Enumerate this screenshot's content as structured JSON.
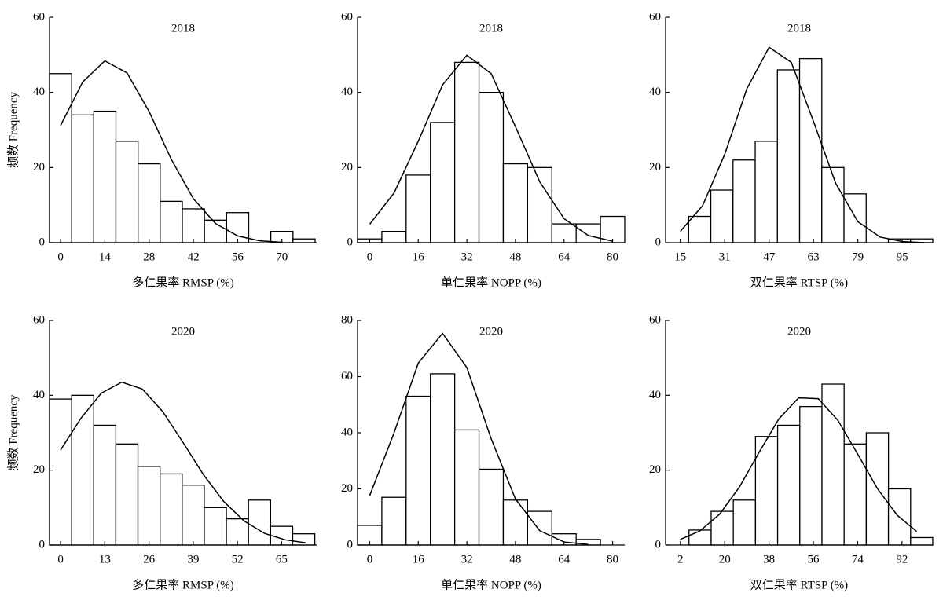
{
  "chart_data": [
    {
      "type": "histogram",
      "title": "2018",
      "xlabel": "多仁果率 RMSP (%)",
      "ylabel": "频数 Frequency",
      "bins": [
        -3.5,
        3.5,
        10.5,
        17.5,
        24.5,
        31.5,
        38.5,
        45.5,
        52.5,
        59.5,
        66.5,
        73.5,
        80.5
      ],
      "counts": [
        45,
        34,
        35,
        27,
        21,
        11,
        9,
        6,
        8,
        0,
        3,
        1
      ],
      "line": {
        "x": [
          0,
          7,
          14,
          21,
          28,
          35,
          42,
          49,
          56,
          63,
          70
        ],
        "values": [
          31.2,
          42.8,
          48.4,
          45.2,
          34.9,
          22.2,
          11.7,
          5.1,
          1.8,
          0.5,
          0.1
        ]
      },
      "xlim": [
        -3.5,
        81
      ],
      "ylim": [
        0,
        60
      ],
      "xticks": [
        0,
        14,
        28,
        42,
        56,
        70
      ],
      "yticks": [
        0,
        20,
        40,
        60
      ]
    },
    {
      "type": "histogram",
      "title": "2018",
      "xlabel": "单仁果率 NOPP (%)",
      "bins": [
        -4,
        4,
        12,
        20,
        28,
        36,
        44,
        52,
        60,
        68,
        76,
        84
      ],
      "counts": [
        1,
        3,
        18,
        32,
        48,
        40,
        21,
        20,
        5,
        5,
        7
      ],
      "line": {
        "x": [
          0,
          8,
          16,
          24,
          32,
          40,
          48,
          56,
          64,
          72,
          80
        ],
        "values": [
          4.9,
          13.2,
          27.0,
          42.0,
          49.9,
          45.0,
          30.9,
          16.2,
          6.4,
          1.9,
          0.4
        ]
      },
      "xlim": [
        -4,
        84
      ],
      "ylim": [
        0,
        60
      ],
      "xticks": [
        0,
        16,
        32,
        48,
        64,
        80
      ],
      "yticks": [
        0,
        20,
        40,
        60
      ]
    },
    {
      "type": "histogram",
      "title": "2018",
      "xlabel": "双仁果率 RTSP (%)",
      "bins": [
        18,
        26,
        34,
        42,
        50,
        58,
        66,
        74,
        82,
        90,
        98,
        106
      ],
      "counts": [
        7,
        14,
        22,
        27,
        46,
        49,
        20,
        13,
        0,
        1,
        1
      ],
      "line": {
        "x": [
          15,
          23,
          31,
          39,
          47,
          55,
          63,
          71,
          79,
          87,
          95,
          103
        ],
        "values": [
          3.0,
          9.8,
          23.5,
          41.0,
          52.0,
          48.0,
          32.3,
          15.8,
          5.6,
          1.5,
          0.3,
          0.0
        ]
      },
      "xlim": [
        9.7,
        106
      ],
      "ylim": [
        0,
        60
      ],
      "xticks": [
        15,
        31,
        47,
        63,
        79,
        95
      ],
      "yticks": [
        0,
        20,
        40,
        60
      ]
    },
    {
      "type": "histogram",
      "title": "2020",
      "xlabel": "多仁果率 RMSP (%)",
      "ylabel": "频数 Frequency",
      "bins": [
        -3.25,
        3.25,
        9.75,
        16.25,
        22.75,
        29.25,
        35.75,
        42.25,
        48.75,
        55.25,
        61.75,
        68.25,
        74.75
      ],
      "counts": [
        39,
        40,
        32,
        27,
        21,
        19,
        16,
        10,
        7,
        12,
        5,
        3
      ],
      "line": {
        "x": [
          0,
          6,
          12,
          18,
          24,
          30,
          36,
          42,
          48,
          54,
          60,
          66,
          72
        ],
        "values": [
          25.4,
          33.9,
          40.6,
          43.5,
          41.7,
          35.7,
          27.4,
          18.8,
          11.6,
          6.4,
          3.1,
          1.4,
          0.6
        ]
      },
      "xlim": [
        -3.25,
        75.3
      ],
      "ylim": [
        0,
        60
      ],
      "xticks": [
        0,
        13,
        26,
        39,
        52,
        65
      ],
      "yticks": [
        0,
        20,
        40,
        60
      ]
    },
    {
      "type": "histogram",
      "title": "2020",
      "xlabel": "单仁果率 NOPP (%)",
      "bins": [
        -4,
        4,
        12,
        20,
        28,
        36,
        44,
        52,
        60,
        68,
        76,
        84
      ],
      "counts": [
        7,
        17,
        53,
        61,
        41,
        27,
        16,
        12,
        4,
        2,
        0
      ],
      "line": {
        "x": [
          0,
          8,
          16,
          24,
          32,
          40,
          48,
          56,
          64,
          72
        ],
        "values": [
          17.6,
          39.9,
          64.8,
          75.4,
          63.2,
          37.9,
          16.4,
          5.1,
          1.1,
          0.2
        ]
      },
      "xlim": [
        -4,
        84
      ],
      "ylim": [
        0,
        80
      ],
      "xticks": [
        0,
        16,
        32,
        48,
        64,
        80
      ],
      "yticks": [
        0,
        20,
        40,
        60,
        80
      ]
    },
    {
      "type": "histogram",
      "title": "2020",
      "xlabel": "双仁果率 RTSP (%)",
      "bins": [
        5.5,
        14.5,
        23.5,
        32.5,
        41.5,
        50.5,
        59.5,
        68.5,
        77.5,
        86.5,
        95.5,
        104.5
      ],
      "counts": [
        4,
        9,
        12,
        29,
        32,
        37,
        43,
        27,
        30,
        15,
        2
      ],
      "line": {
        "x": [
          2,
          10,
          18,
          26,
          34,
          42,
          50,
          58,
          66,
          74,
          82,
          90,
          98
        ],
        "values": [
          1.5,
          3.8,
          8.3,
          15.5,
          24.8,
          33.7,
          39.3,
          39.1,
          33.3,
          24.3,
          15.1,
          8.0,
          3.6
        ]
      },
      "xlim": [
        -4,
        104.5
      ],
      "ylim": [
        0,
        60
      ],
      "xticks": [
        2,
        20,
        38,
        56,
        74,
        92
      ],
      "yticks": [
        0,
        20,
        40,
        60
      ]
    }
  ]
}
